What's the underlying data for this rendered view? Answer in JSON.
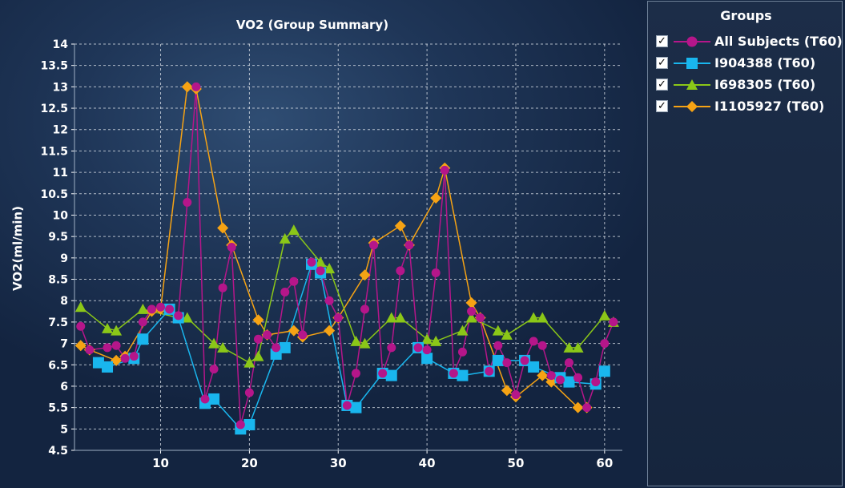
{
  "chart_data": {
    "type": "line",
    "title": "VO2 (Group Summary)",
    "xlabel": "",
    "ylabel": "VO2(ml/min)",
    "xlim": [
      0.3,
      62
    ],
    "ylim": [
      4.5,
      14
    ],
    "x_ticks": [
      10,
      20,
      30,
      40,
      50,
      60
    ],
    "y_ticks": [
      4.5,
      5,
      5.5,
      6,
      6.5,
      7,
      7.5,
      8,
      8.5,
      9,
      9.5,
      10,
      10.5,
      11,
      11.5,
      12,
      12.5,
      13,
      13.5,
      14
    ],
    "grid": true,
    "legend_title": "Groups",
    "legend_position": "right",
    "series": [
      {
        "name": "All Subjects (T60)",
        "color": "#b5168a",
        "marker": "circle",
        "x": [
          1,
          2,
          4,
          5,
          6,
          7,
          8,
          9,
          10,
          11,
          12,
          13,
          14,
          15,
          16,
          17,
          18,
          19,
          20,
          21,
          22,
          23,
          24,
          25,
          26,
          27,
          28,
          29,
          30,
          31,
          32,
          33,
          34,
          35,
          36,
          37,
          38,
          39,
          40,
          41,
          42,
          43,
          44,
          45,
          46,
          47,
          48,
          49,
          50,
          51,
          52,
          53,
          54,
          55,
          56,
          57,
          58,
          59,
          60,
          61
        ],
        "y": [
          7.4,
          6.85,
          6.9,
          6.95,
          6.65,
          6.7,
          7.5,
          7.8,
          7.85,
          7.8,
          7.65,
          10.3,
          13.0,
          5.7,
          6.4,
          8.3,
          9.25,
          5.1,
          5.85,
          7.1,
          7.2,
          6.9,
          8.2,
          8.45,
          7.2,
          8.9,
          8.7,
          8.0,
          7.6,
          5.55,
          6.3,
          7.8,
          9.3,
          6.3,
          6.9,
          8.7,
          9.3,
          6.9,
          6.85,
          8.65,
          11.05,
          6.3,
          6.8,
          7.75,
          7.6,
          6.35,
          6.95,
          6.55,
          5.8,
          6.6,
          7.05,
          6.95,
          6.25,
          6.15,
          6.55,
          6.2,
          5.5,
          6.1,
          7.0,
          7.5
        ]
      },
      {
        "name": "I904388 (T60)",
        "color": "#19b6ee",
        "marker": "square",
        "x": [
          3,
          4,
          7,
          8,
          11,
          12,
          15,
          16,
          19,
          20,
          23,
          24,
          27,
          28,
          31,
          32,
          35,
          36,
          39,
          40,
          43,
          44,
          47,
          48,
          51,
          52,
          55,
          56,
          59,
          60
        ],
        "y": [
          6.55,
          6.45,
          6.65,
          7.1,
          7.8,
          7.6,
          5.6,
          5.7,
          5.0,
          5.1,
          6.75,
          6.9,
          8.85,
          8.65,
          5.55,
          5.5,
          6.3,
          6.25,
          6.9,
          6.65,
          6.3,
          6.25,
          6.35,
          6.6,
          6.6,
          6.45,
          6.2,
          6.1,
          6.05,
          6.35
        ]
      },
      {
        "name": "I698305 (T60)",
        "color": "#8bc718",
        "marker": "triangle",
        "x": [
          1,
          4,
          5,
          8,
          12,
          13,
          16,
          17,
          20,
          21,
          24,
          25,
          28,
          29,
          32,
          33,
          36,
          37,
          40,
          41,
          44,
          45,
          48,
          49,
          52,
          53,
          56,
          57,
          60,
          61
        ],
        "y": [
          7.85,
          7.35,
          7.3,
          7.8,
          7.6,
          7.6,
          7.0,
          6.9,
          6.55,
          6.7,
          9.45,
          9.65,
          8.9,
          8.75,
          7.05,
          7.0,
          7.6,
          7.6,
          7.1,
          7.05,
          7.3,
          7.6,
          7.3,
          7.2,
          7.6,
          7.6,
          6.9,
          6.9,
          7.65,
          7.5
        ]
      },
      {
        "name": "I1105927 (T60)",
        "color": "#f6a314",
        "marker": "diamond",
        "x": [
          1,
          2,
          5,
          6,
          9,
          10,
          13,
          14,
          17,
          18,
          21,
          22,
          25,
          26,
          29,
          30,
          33,
          34,
          37,
          38,
          41,
          42,
          45,
          46,
          49,
          50,
          53,
          54,
          57,
          58
        ],
        "y": [
          6.95,
          6.85,
          6.6,
          6.7,
          7.75,
          7.8,
          13.0,
          12.95,
          9.7,
          9.3,
          7.55,
          7.2,
          7.3,
          7.15,
          7.3,
          7.6,
          8.6,
          9.35,
          9.75,
          9.3,
          10.4,
          11.1,
          7.95,
          7.6,
          5.9,
          5.75,
          6.25,
          6.1,
          5.5,
          5.5
        ]
      }
    ]
  }
}
